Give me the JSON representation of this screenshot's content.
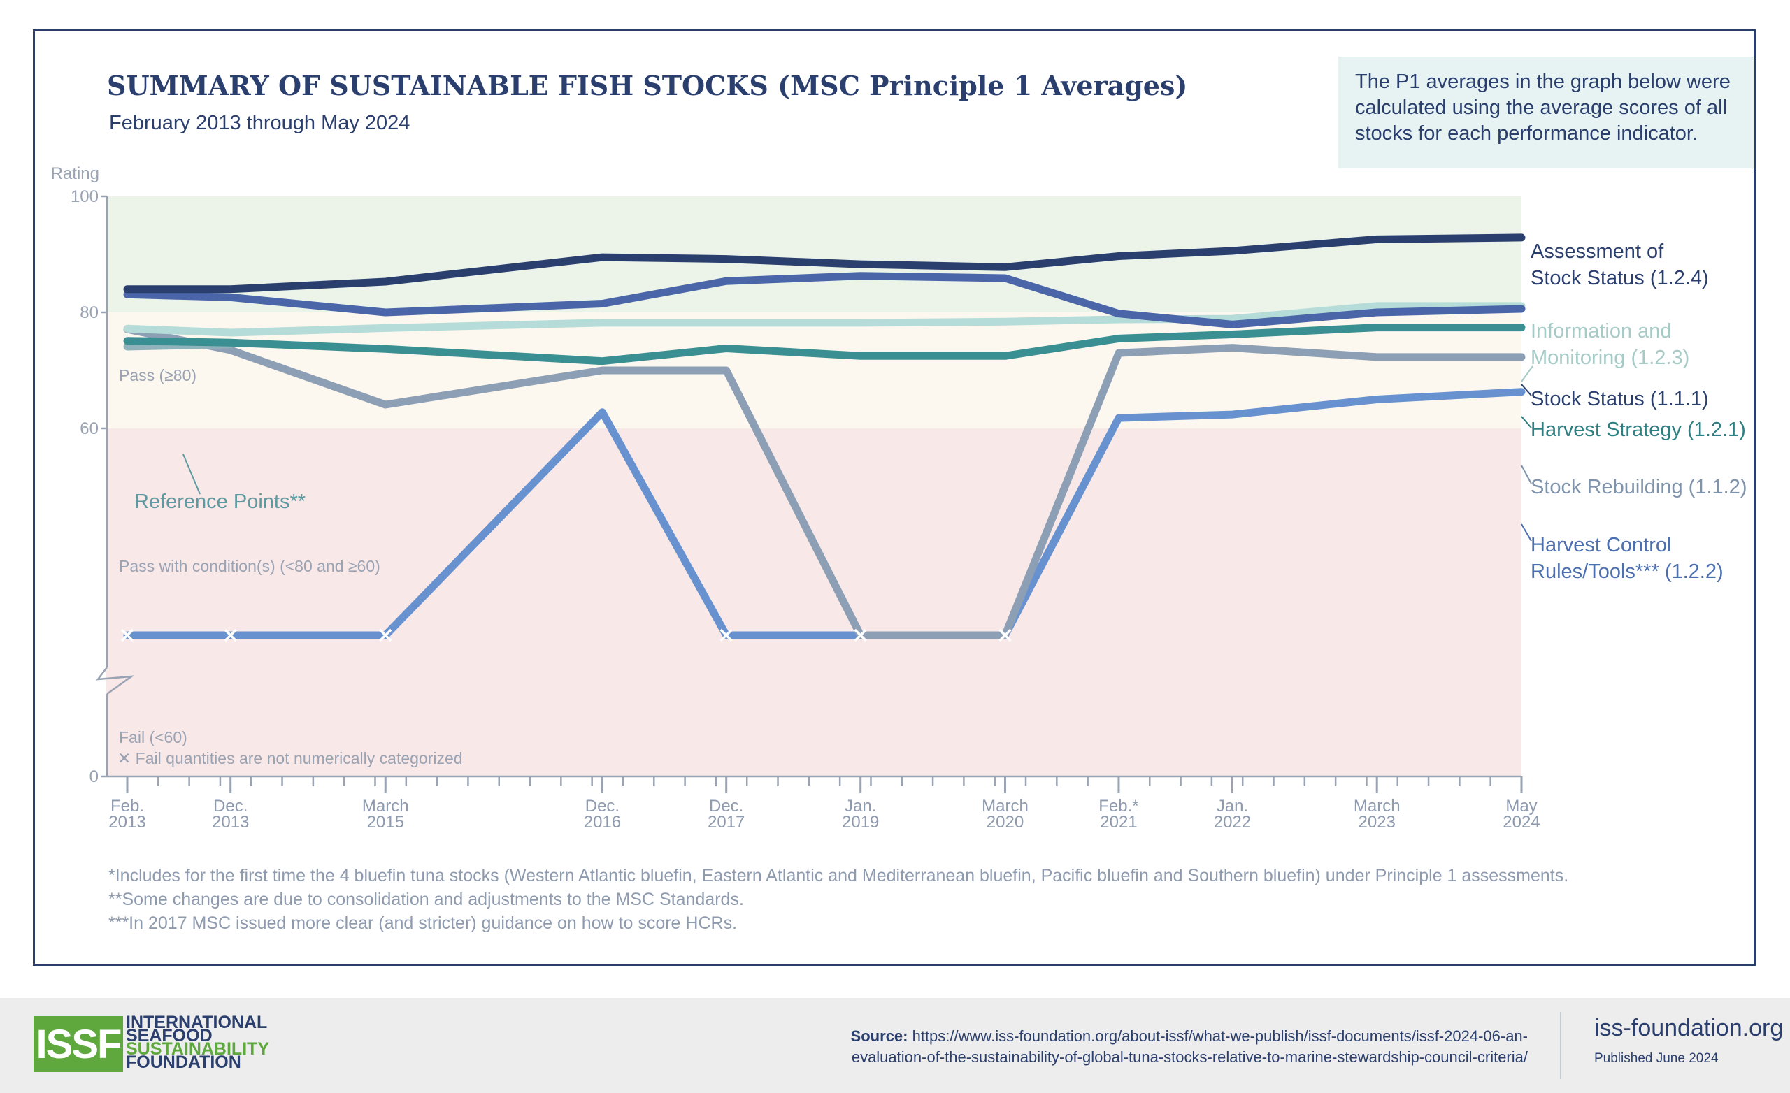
{
  "header": {
    "title": "SUMMARY OF SUSTAINABLE FISH STOCKS (MSC Principle 1 Averages)",
    "subtitle": "February 2013 through May 2024",
    "note": "The P1 averages in the graph below were calculated using the average scores of all stocks for each performance indicator."
  },
  "footnotes": [
    "*Includes for the first time the 4 bluefin tuna stocks (Western Atlantic bluefin, Eastern Atlantic and Mediterranean bluefin, Pacific bluefin and Southern bluefin) under Principle 1 assessments.",
    "**Some changes are due to consolidation and adjustments to the MSC Standards.",
    "***In 2017 MSC issued more clear (and stricter) guidance on how to score HCRs."
  ],
  "footer": {
    "logo_mark": "ISSF",
    "logo_lines": [
      "INTERNATIONAL",
      "SEAFOOD",
      "SUSTAINABILITY",
      "FOUNDATION"
    ],
    "source_label": "Source:",
    "source_line1": "https://www.iss-foundation.org/about-issf/what-we-publish/issf-documents/issf-2024-06-an-",
    "source_line2": "evaluation-of-the-sustainability-of-global-tuna-stocks-relative-to-marine-stewardship-council-criteria/",
    "site": "iss-foundation.org",
    "published": "Published June 2024"
  },
  "chart_data": {
    "type": "line",
    "ylabel": "Rating",
    "yticks": [
      0,
      60,
      80,
      100
    ],
    "ylim": [
      0,
      100
    ],
    "axis_break": true,
    "x_dates": [
      "2013-02",
      "2013-12",
      "2015-03",
      "2016-12",
      "2017-12",
      "2019-01",
      "2020-03",
      "2021-02",
      "2022-01",
      "2023-03",
      "2024-05"
    ],
    "x_tick_labels": [
      [
        "Feb.",
        "2013"
      ],
      [
        "Dec.",
        "2013"
      ],
      [
        "March",
        "2015"
      ],
      [
        "Dec.",
        "2016"
      ],
      [
        "Dec.",
        "2017"
      ],
      [
        "Jan.",
        "2019"
      ],
      [
        "March",
        "2020"
      ],
      [
        "Feb.*",
        "2021"
      ],
      [
        "Jan.",
        "2022"
      ],
      [
        "March",
        "2023"
      ],
      [
        "May",
        "2024"
      ]
    ],
    "zones": [
      {
        "label": "Pass (≥80)",
        "from": 80,
        "to": 100,
        "color": "#ecf4ea"
      },
      {
        "label": "Pass with condition(s) (<80 and ≥60)",
        "from": 60,
        "to": 80,
        "color": "#fdf8ef"
      },
      {
        "label": "Fail (<60)",
        "from": 0,
        "to": 60,
        "color": "#f8e8e8"
      }
    ],
    "fail_note": "Fail quantities are not numerically categorized",
    "series": [
      {
        "name": "Assessment of Stock Status (1.2.4)",
        "label_lines": [
          "Assessment of",
          "Stock Status (1.2.4)"
        ],
        "color": "#2b3f6e",
        "label_color": "#2b3f6e",
        "values": [
          84.0,
          84.0,
          85.3,
          89.5,
          89.2,
          88.3,
          87.8,
          89.7,
          90.6,
          92.6,
          92.9
        ]
      },
      {
        "name": "Information and Monitoring (1.2.3)",
        "label_lines": [
          "Information and",
          "Monitoring (1.2.3)"
        ],
        "color": "#b5dcd8",
        "label_color": "#a6cbc7",
        "values": [
          77.2,
          76.5,
          77.3,
          78.2,
          78.2,
          78.2,
          78.4,
          78.8,
          78.9,
          81.1,
          81.1
        ]
      },
      {
        "name": "Stock Status (1.1.1)",
        "label_lines": [
          "Stock Status (1.1.1)"
        ],
        "color": "#4a66a8",
        "label_color": "#2b3f6e",
        "values": [
          83.1,
          82.6,
          80.0,
          81.5,
          85.4,
          86.3,
          85.9,
          79.8,
          77.9,
          80.0,
          80.6
        ]
      },
      {
        "name": "Harvest Strategy (1.2.1)",
        "label_lines": [
          "Harvest Strategy (1.2.1)"
        ],
        "color": "#3a8f92",
        "label_color": "#2f7f82",
        "values": [
          75.1,
          74.8,
          73.7,
          71.6,
          73.8,
          72.5,
          72.5,
          75.5,
          76.2,
          77.4,
          77.4
        ]
      },
      {
        "name": "Stock Rebuilding (1.1.2)",
        "label_lines": [
          "Stock Rebuilding (1.1.2)"
        ],
        "color": "#8d9fb4",
        "label_color": "#7f93ab",
        "values": [
          77.1,
          73.5,
          64.1,
          70.0,
          70.0,
          "fail",
          "fail",
          73.0,
          73.9,
          72.3,
          72.3
        ]
      },
      {
        "name": "Harvest Control Rules/Tools*** (1.2.2)",
        "label_lines": [
          "Harvest Control",
          "Rules/Tools*** (1.2.2)"
        ],
        "color": "#6792cf",
        "label_color": "#4c6fb0",
        "values": [
          "fail",
          "fail",
          "fail",
          62.8,
          "fail",
          "fail",
          "fail",
          61.8,
          62.4,
          65.0,
          66.3
        ]
      },
      {
        "name": "Reference Points**",
        "label_lines": [
          "Reference Points**"
        ],
        "color": "#8fb3ba",
        "label_color": "#5d9aa1",
        "values": [
          74.1,
          74.5,
          null,
          null,
          null,
          null,
          null,
          null,
          null,
          null,
          null
        ]
      }
    ]
  }
}
